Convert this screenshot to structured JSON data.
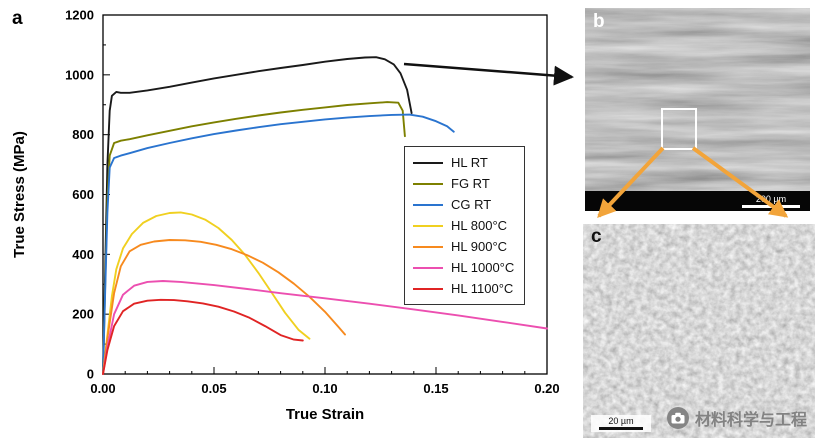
{
  "figure": {
    "panel_a": {
      "label": "a"
    },
    "panel_b": {
      "label": "b",
      "scale_bar_label": "200 µm"
    },
    "panel_c": {
      "label": "c",
      "scale_bar_label": "20 µm"
    },
    "watermark": {
      "text": "材料科学与工程",
      "icon": "camera-icon"
    }
  },
  "chart_data": {
    "type": "line",
    "title": "",
    "xlabel": "True Strain",
    "ylabel": "True Stress (MPa)",
    "xlim": [
      0,
      0.2
    ],
    "ylim": [
      0,
      1200
    ],
    "xticks": [
      0,
      0.05,
      0.1,
      0.15,
      0.2
    ],
    "yticks": [
      0,
      200,
      400,
      600,
      800,
      1000,
      1200
    ],
    "grid": false,
    "legend_position": "inside-middle-right",
    "series": [
      {
        "name": "HL RT",
        "color": "#1a1a1a",
        "x": [
          0,
          0.001,
          0.002,
          0.003,
          0.004,
          0.006,
          0.008,
          0.012,
          0.02,
          0.03,
          0.04,
          0.05,
          0.06,
          0.07,
          0.08,
          0.09,
          0.1,
          0.11,
          0.118,
          0.123,
          0.127,
          0.131,
          0.134,
          0.137,
          0.139
        ],
        "y": [
          0,
          350,
          700,
          880,
          930,
          943,
          940,
          940,
          948,
          960,
          974,
          988,
          1000,
          1012,
          1023,
          1033,
          1044,
          1053,
          1058,
          1059,
          1052,
          1035,
          1005,
          950,
          872
        ]
      },
      {
        "name": "FG RT",
        "color": "#7d8000",
        "x": [
          0,
          0.001,
          0.002,
          0.003,
          0.005,
          0.008,
          0.012,
          0.02,
          0.03,
          0.04,
          0.05,
          0.06,
          0.07,
          0.08,
          0.09,
          0.1,
          0.11,
          0.12,
          0.128,
          0.133,
          0.135,
          0.136
        ],
        "y": [
          0,
          300,
          580,
          730,
          772,
          780,
          785,
          798,
          813,
          828,
          841,
          853,
          864,
          874,
          883,
          891,
          899,
          905,
          909,
          907,
          880,
          795
        ]
      },
      {
        "name": "CG RT",
        "color": "#2a74cf",
        "x": [
          0,
          0.001,
          0.002,
          0.003,
          0.005,
          0.008,
          0.012,
          0.02,
          0.03,
          0.04,
          0.05,
          0.06,
          0.07,
          0.08,
          0.09,
          0.1,
          0.11,
          0.12,
          0.13,
          0.138,
          0.144,
          0.15,
          0.155,
          0.158
        ],
        "y": [
          0,
          280,
          540,
          690,
          722,
          730,
          738,
          755,
          772,
          788,
          802,
          814,
          825,
          835,
          843,
          851,
          857,
          862,
          866,
          867,
          860,
          845,
          828,
          810
        ]
      },
      {
        "name": "HL 800°C",
        "color": "#f0d020",
        "x": [
          0,
          0.002,
          0.004,
          0.006,
          0.009,
          0.013,
          0.018,
          0.024,
          0.03,
          0.035,
          0.04,
          0.046,
          0.052,
          0.058,
          0.064,
          0.07,
          0.076,
          0.082,
          0.088,
          0.093
        ],
        "y": [
          0,
          130,
          260,
          350,
          420,
          468,
          505,
          528,
          538,
          540,
          533,
          516,
          488,
          448,
          398,
          338,
          272,
          205,
          148,
          118
        ]
      },
      {
        "name": "HL 900°C",
        "color": "#f78a1e",
        "x": [
          0,
          0.002,
          0.005,
          0.008,
          0.012,
          0.017,
          0.023,
          0.03,
          0.037,
          0.044,
          0.051,
          0.058,
          0.065,
          0.072,
          0.079,
          0.086,
          0.093,
          0.1,
          0.106,
          0.109
        ],
        "y": [
          0,
          120,
          270,
          360,
          410,
          432,
          443,
          448,
          447,
          442,
          432,
          417,
          397,
          372,
          340,
          302,
          258,
          208,
          158,
          132
        ]
      },
      {
        "name": "HL 1000°C",
        "color": "#ec4fb0",
        "x": [
          0,
          0.002,
          0.005,
          0.009,
          0.014,
          0.02,
          0.027,
          0.035,
          0.05,
          0.065,
          0.08,
          0.1,
          0.12,
          0.14,
          0.16,
          0.18,
          0.2
        ],
        "y": [
          0,
          90,
          200,
          265,
          295,
          308,
          311,
          308,
          297,
          284,
          270,
          253,
          235,
          216,
          196,
          174,
          152
        ]
      },
      {
        "name": "HL 1100°C",
        "color": "#e02424",
        "x": [
          0,
          0.002,
          0.005,
          0.009,
          0.014,
          0.02,
          0.026,
          0.032,
          0.038,
          0.045,
          0.052,
          0.059,
          0.066,
          0.073,
          0.08,
          0.086,
          0.09
        ],
        "y": [
          0,
          80,
          160,
          210,
          235,
          245,
          248,
          247,
          243,
          236,
          225,
          209,
          188,
          160,
          130,
          115,
          112
        ]
      }
    ]
  }
}
